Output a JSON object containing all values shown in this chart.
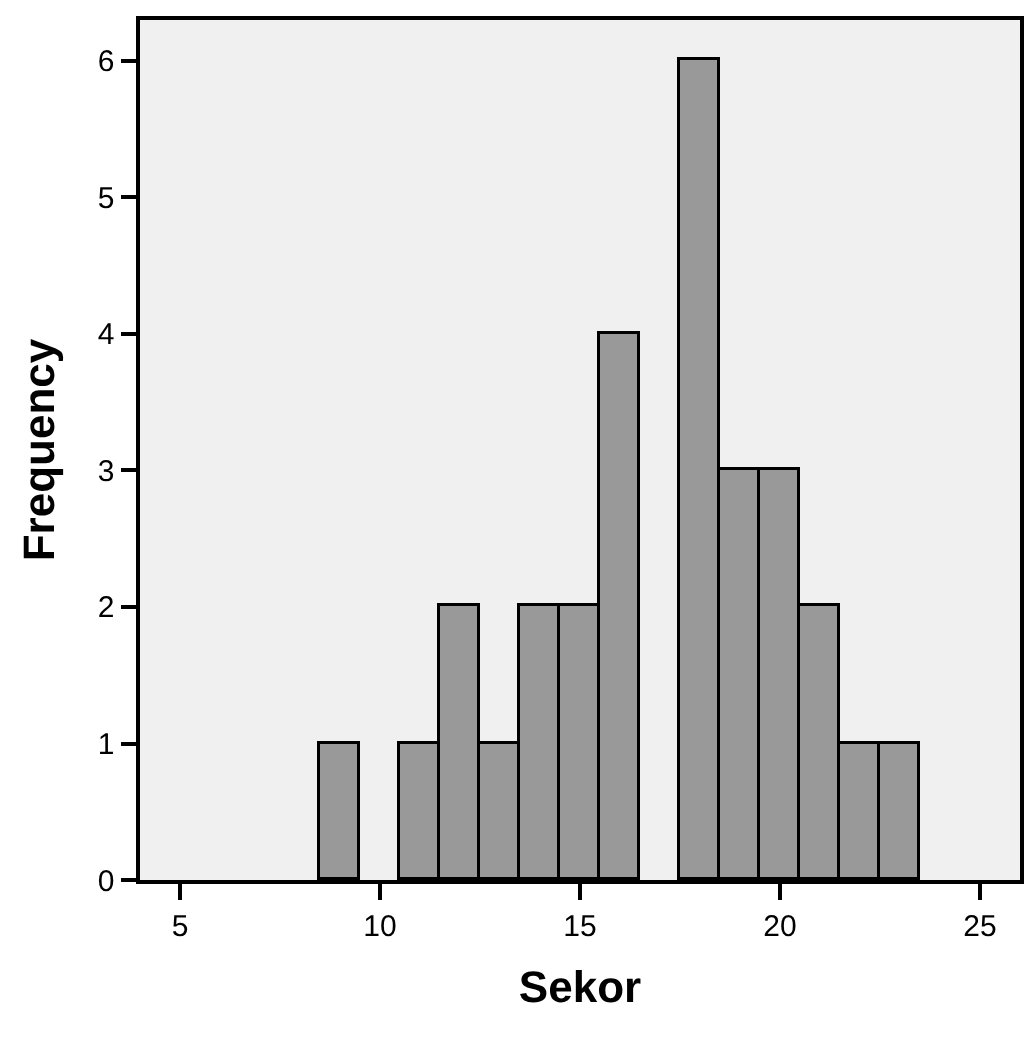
{
  "chart_data": {
    "type": "histogram",
    "xlabel": "Sekor",
    "ylabel": "Frequency",
    "bins": [
      8.5,
      9.5,
      10.5,
      11.5,
      12.5,
      13.5,
      14.5,
      15.5,
      16.5,
      17.5,
      18.5,
      19.5,
      20.5,
      21.5,
      22.5,
      23.5
    ],
    "values": [
      1,
      0,
      1,
      2,
      1,
      2,
      2,
      4,
      0,
      6,
      3,
      3,
      2,
      1,
      1
    ],
    "color": "#999999",
    "xlim": [
      4,
      26
    ],
    "xticks": [
      5,
      10,
      15,
      20,
      25
    ],
    "ylim": [
      0,
      6.3
    ],
    "yticks": [
      0,
      1,
      2,
      3,
      4,
      5,
      6
    ],
    "grid": false,
    "legend": false
  }
}
